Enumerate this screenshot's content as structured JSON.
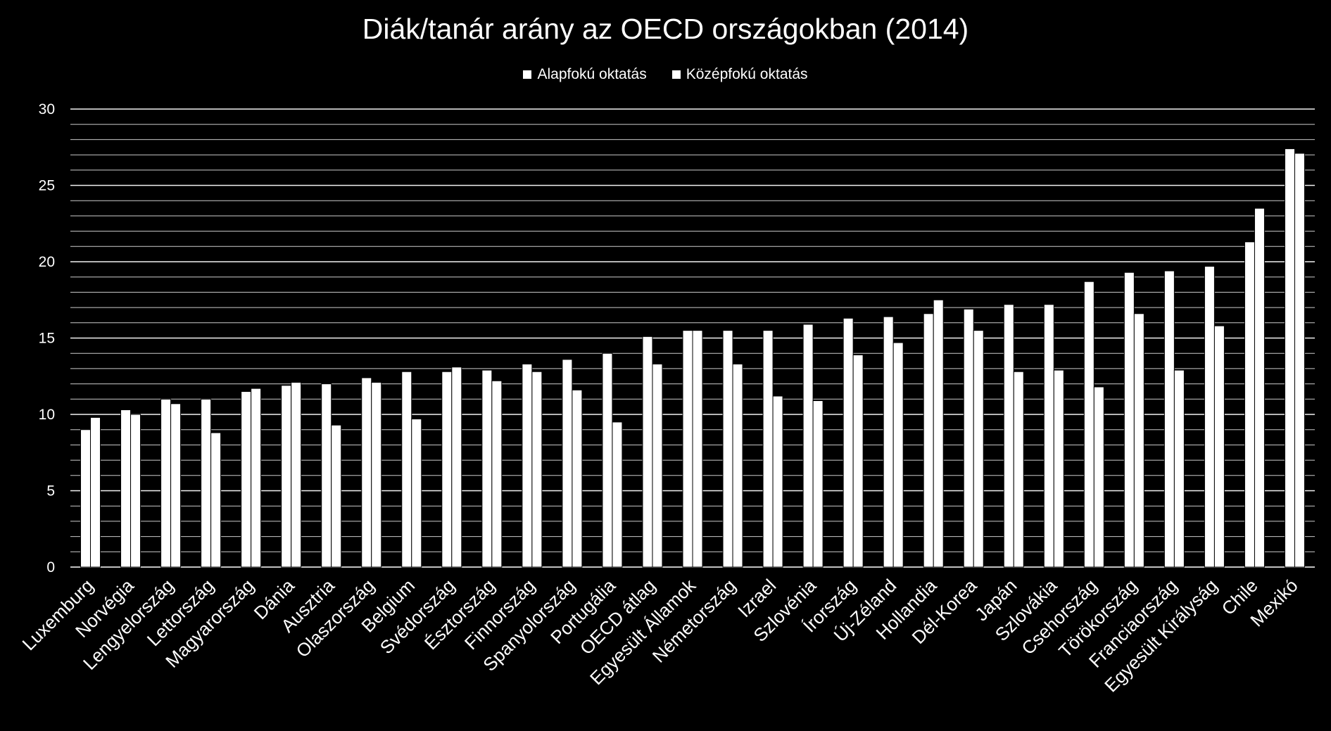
{
  "chart_data": {
    "type": "bar",
    "title": "Diák/tanár arány az OECD országokban (2014)",
    "xlabel": "",
    "ylabel": "",
    "ylim": [
      0,
      30
    ],
    "yticks": [
      0,
      5,
      10,
      15,
      20,
      25,
      30
    ],
    "grid": true,
    "legend_position": "top",
    "categories": [
      "Luxemburg",
      "Norvégia",
      "Lengyelország",
      "Lettország",
      "Magyarország",
      "Dánia",
      "Ausztria",
      "Olaszország",
      "Belgium",
      "Svédország",
      "Észtország",
      "Finnország",
      "Spanyolország",
      "Portugália",
      "OECD átlag",
      "Egyesült Államok",
      "Németország",
      "Izrael",
      "Szlovénia",
      "Írország",
      "Új-Zéland",
      "Hollandia",
      "Dél-Korea",
      "Japán",
      "Szlovákia",
      "Csehország",
      "Törökország",
      "Franciaország",
      "Egyesült Királyság",
      "Chile",
      "Mexikó"
    ],
    "series": [
      {
        "name": "Alapfokú oktatás",
        "values": [
          9.0,
          10.3,
          11.0,
          11.0,
          11.5,
          11.9,
          12.0,
          12.4,
          12.8,
          12.8,
          12.9,
          13.3,
          13.6,
          14.0,
          15.1,
          15.5,
          15.5,
          15.5,
          15.9,
          16.3,
          16.4,
          16.6,
          16.9,
          17.2,
          17.2,
          18.7,
          19.3,
          19.4,
          19.7,
          21.3,
          27.4
        ]
      },
      {
        "name": "Középfokú oktatás",
        "values": [
          9.8,
          10.0,
          10.7,
          8.8,
          11.7,
          12.1,
          9.3,
          12.1,
          9.7,
          13.1,
          12.2,
          12.8,
          11.6,
          9.5,
          13.3,
          15.5,
          13.3,
          11.2,
          10.9,
          13.9,
          14.7,
          17.5,
          15.5,
          12.8,
          12.9,
          11.8,
          16.6,
          12.9,
          15.8,
          23.5,
          27.1
        ]
      }
    ],
    "colors": {
      "background": "#000000",
      "bars": "#ffffff",
      "grid": "#ffffff",
      "text": "#ffffff"
    }
  }
}
